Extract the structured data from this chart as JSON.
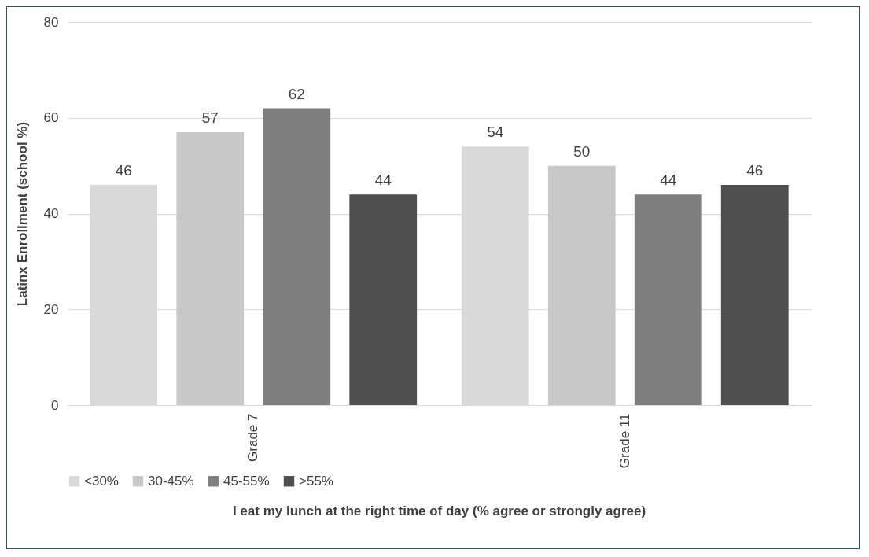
{
  "chart_data": {
    "type": "bar",
    "ylabel": "Latinx Enrollment  (school %)",
    "xlabel": "I eat my lunch at the right time of day (% agree or strongly agree)",
    "categories": [
      "Grade  7",
      "Grade 11"
    ],
    "series": [
      {
        "name": "<30%",
        "color": "#d9d9d9",
        "values": [
          46,
          54
        ]
      },
      {
        "name": "30-45%",
        "color": "#c8c8c8",
        "values": [
          57,
          50
        ]
      },
      {
        "name": "45-55%",
        "color": "#7f7f7f",
        "values": [
          62,
          44
        ]
      },
      {
        "name": ">55%",
        "color": "#4f4f4f",
        "values": [
          44,
          46
        ]
      }
    ],
    "ylim": [
      0,
      80
    ],
    "yticks": [
      0,
      20,
      40,
      60,
      80
    ],
    "grid": "y",
    "legend": "bottom",
    "data_labels": true
  }
}
